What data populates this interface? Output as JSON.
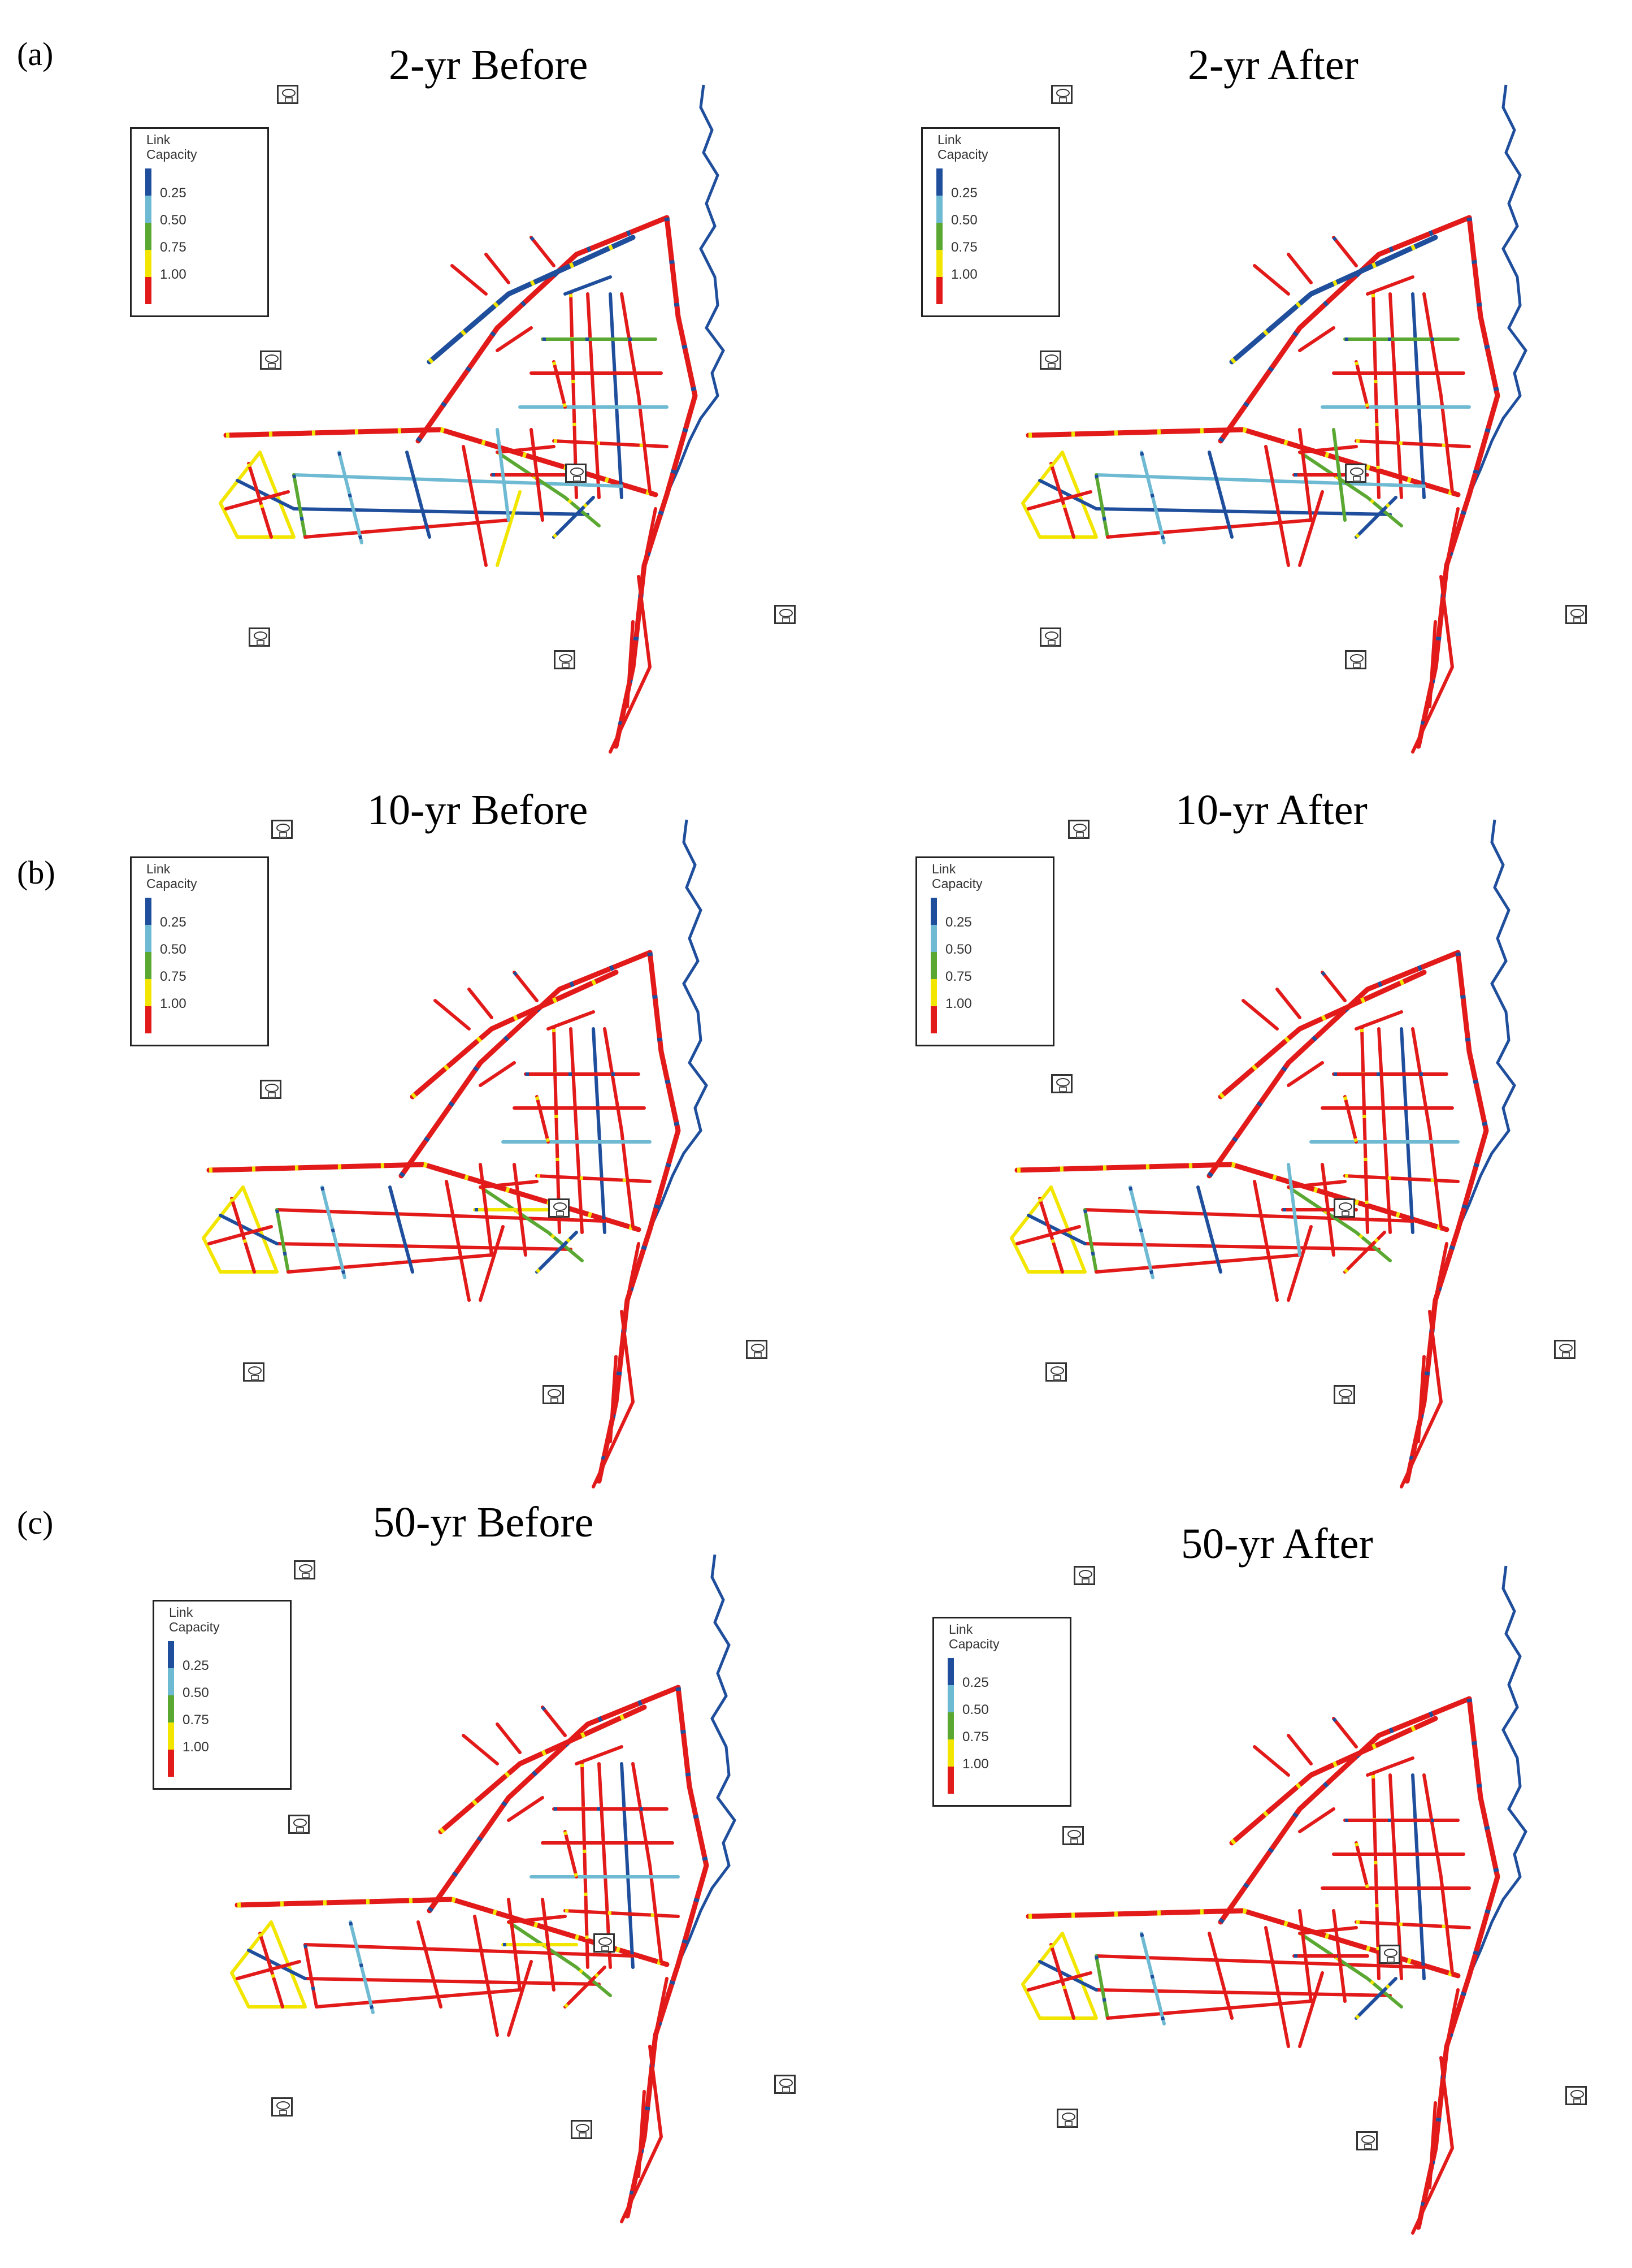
{
  "rows": [
    {
      "label": "(a)",
      "titles": [
        "2-yr Before",
        "2-yr After"
      ]
    },
    {
      "label": "(b)",
      "titles": [
        "10-yr Before",
        "10-yr After"
      ]
    },
    {
      "label": "(c)",
      "titles": [
        "50-yr Before",
        "50-yr After"
      ]
    }
  ],
  "legend": {
    "title_line1": "Link",
    "title_line2": "Capacity",
    "classes": [
      {
        "label": "0.25",
        "color": "#1f4e9c"
      },
      {
        "label": "0.50",
        "color": "#6fbad3"
      },
      {
        "label": "0.75",
        "color": "#5aa832"
      },
      {
        "label": "1.00",
        "color": "#f2e600"
      },
      {
        "label": "",
        "color": "#e21a1a"
      }
    ]
  },
  "colors": {
    "river": "#1f4e9c",
    "road_main": "#e21a1a",
    "road_low": "#1f4e9c",
    "road_mid": "#6fbad3",
    "road_green": "#5aa832",
    "road_yellow": "#f2e600"
  },
  "icon_name": "rain-gauge-icon"
}
